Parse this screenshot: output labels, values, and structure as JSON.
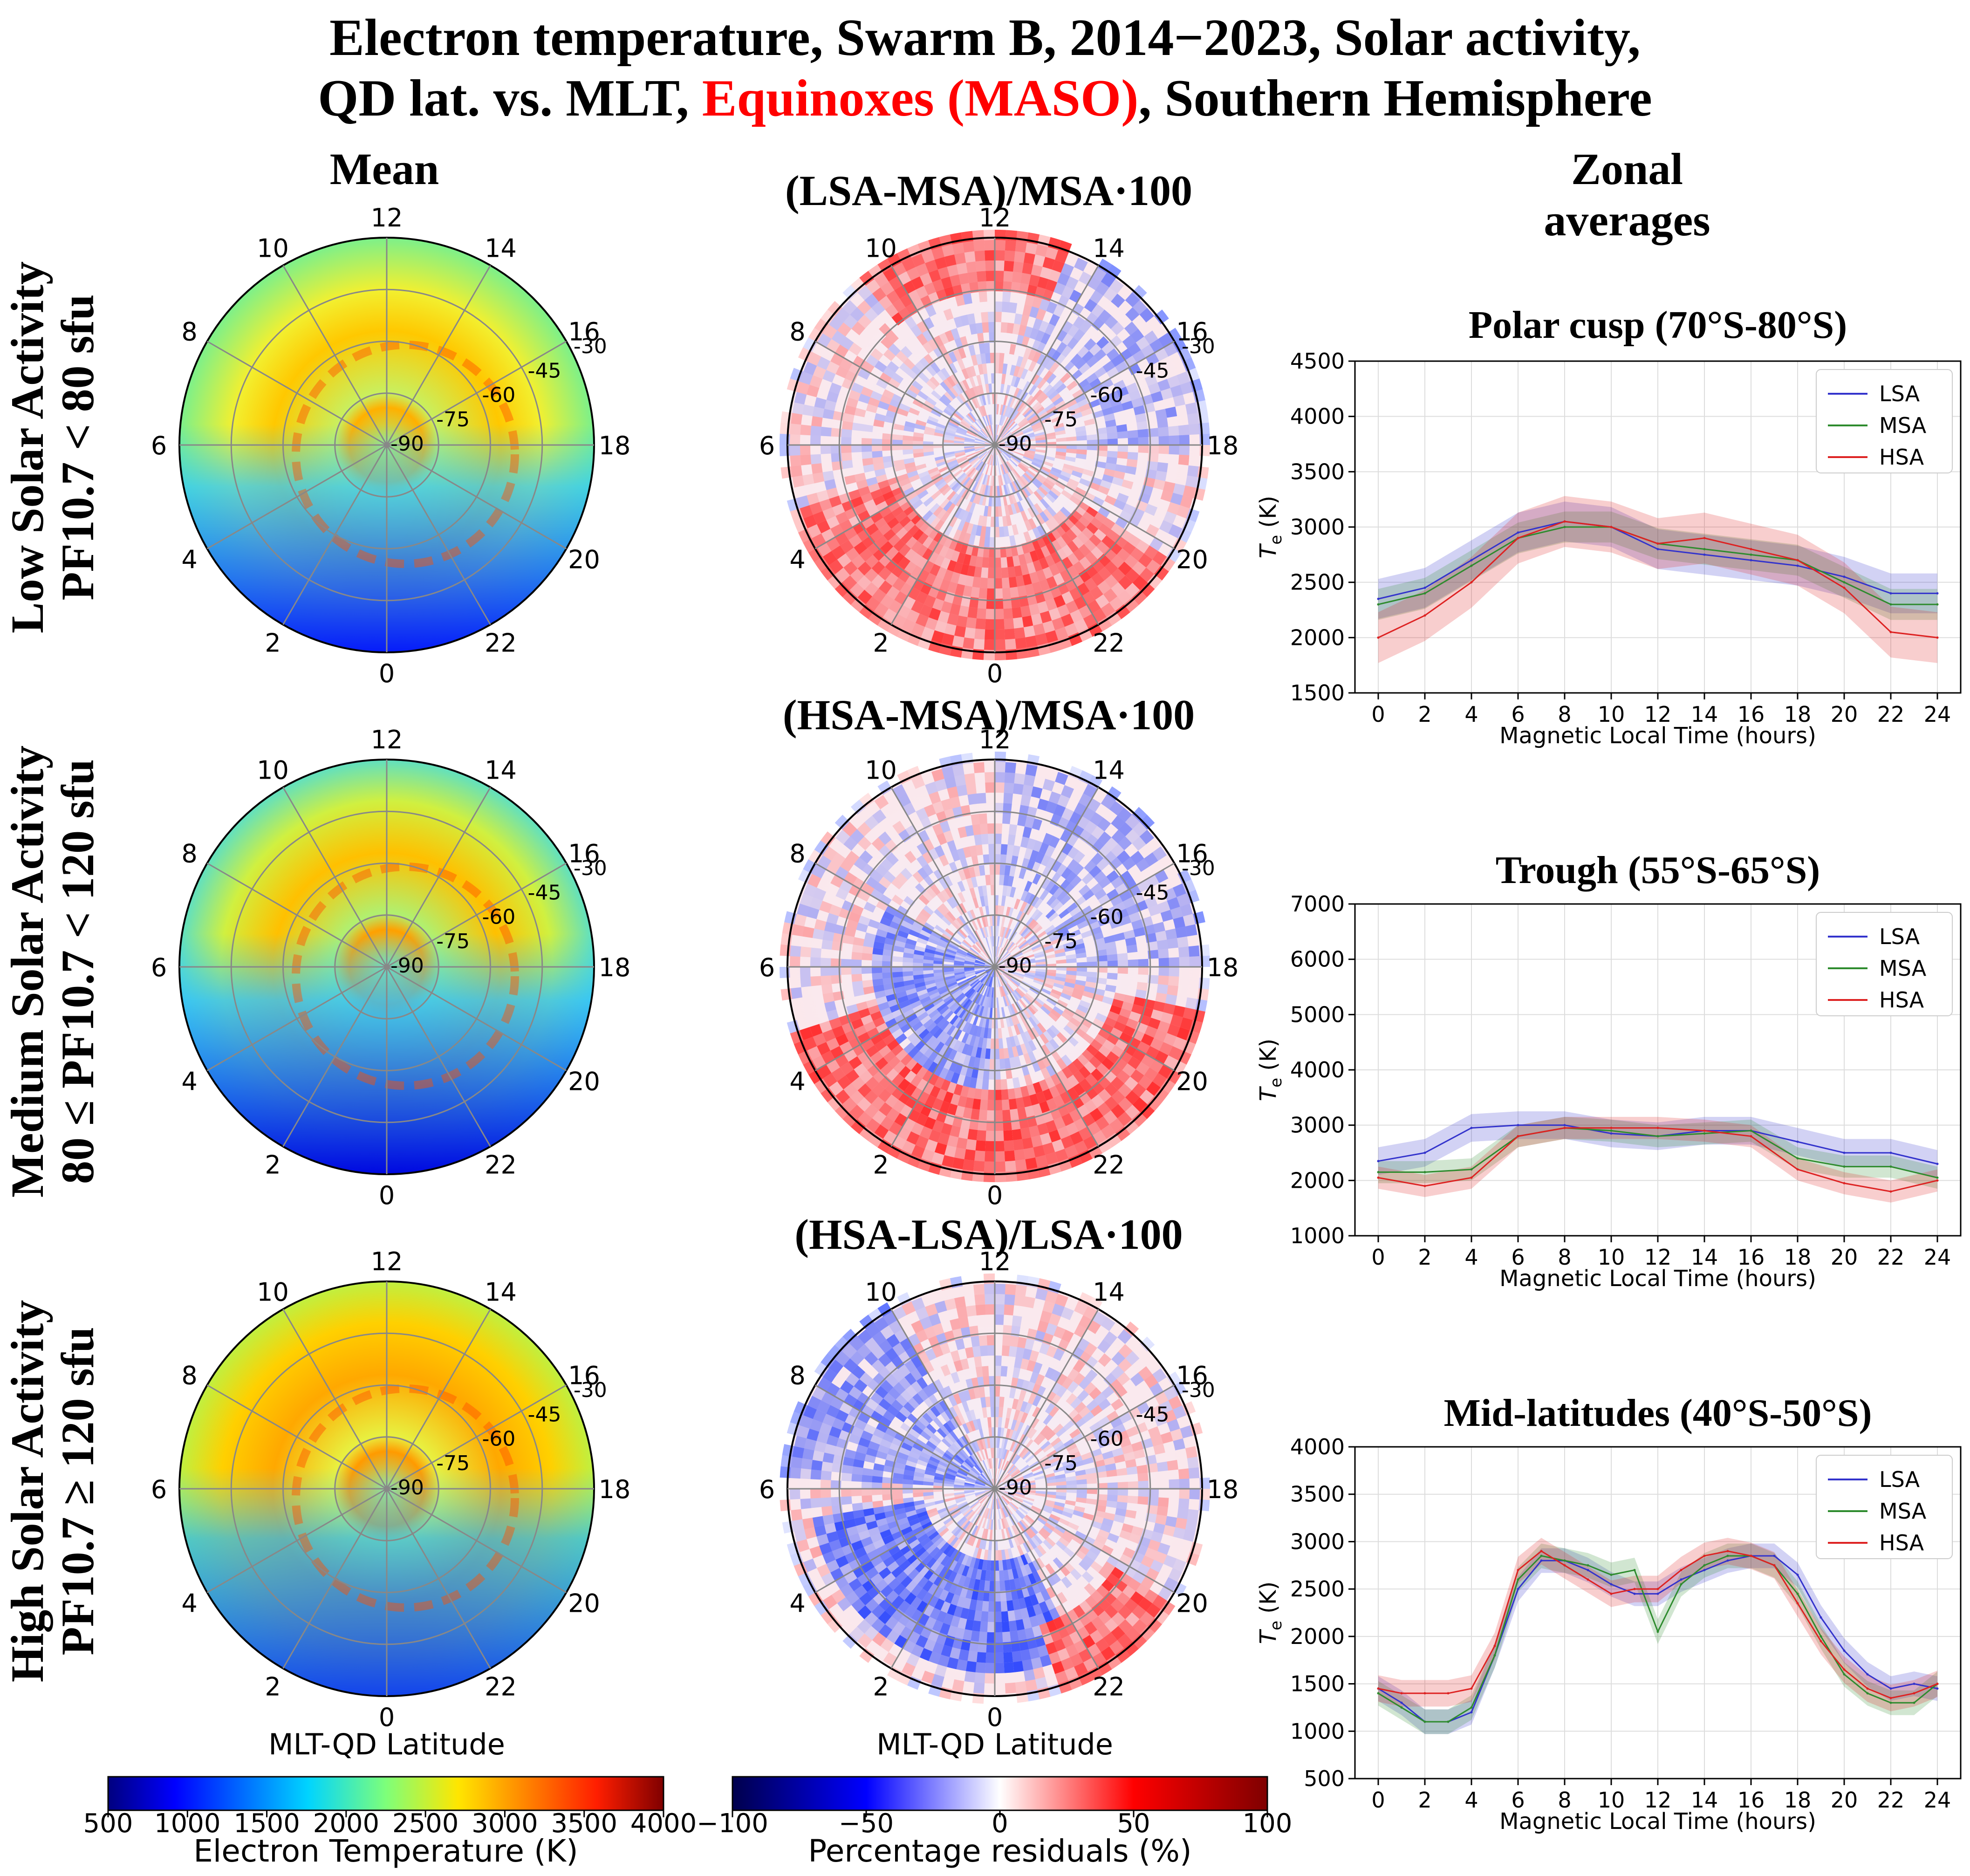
{
  "figure": {
    "title_line1": "Electron temperature, Swarm B, 2014−2023, Solar activity,",
    "title_line2_a": "QD lat. vs. MLT, ",
    "title_line2_b": "Equinoxes (MASO)",
    "title_line2_c": ", Southern Hemisphere",
    "highlight_color": "#ff0000"
  },
  "column_headers": {
    "mean": "Mean",
    "zonal_line1": "Zonal",
    "zonal_line2": "averages"
  },
  "row_labels": [
    {
      "line1": "Low Solar Activity",
      "line2": "PF10.7 < 80 sfu"
    },
    {
      "line1": "Medium Solar Activity",
      "line2": "80 ≤ PF10.7 < 120 sfu"
    },
    {
      "line1": "High Solar Activity",
      "line2": "PF10.7 ≥ 120 sfu"
    }
  ],
  "residual_titles": [
    "(LSA-MSA)/MSA·100",
    "(HSA-MSA)/MSA·100",
    "(HSA-LSA)/LSA·100"
  ],
  "polar": {
    "mlt_labels": [
      "0",
      "2",
      "4",
      "6",
      "8",
      "10",
      "12",
      "14",
      "16",
      "18",
      "20",
      "22"
    ],
    "lat_labels": [
      "-90",
      "-75",
      "-60",
      "-45",
      "-30"
    ],
    "xlabel": "MLT-QD Latitude"
  },
  "colorbars": {
    "temperature": {
      "label": "Electron Temperature (K)",
      "ticks": [
        "500",
        "1000",
        "1500",
        "2000",
        "2500",
        "3000",
        "3500",
        "4000"
      ],
      "range": [
        500,
        4000
      ]
    },
    "residual": {
      "label": "Percentage residuals (%)",
      "ticks": [
        "−100",
        "−50",
        "0",
        "50",
        "100"
      ],
      "range": [
        -100,
        100
      ]
    }
  },
  "colors": {
    "LSA": "#3333cc",
    "MSA": "#2e8b2e",
    "HSA": "#dd2222"
  },
  "chart_data": [
    {
      "type": "line",
      "title": "Polar cusp (70°S-80°S)",
      "xlabel": "Magnetic Local Time (hours)",
      "ylabel": "T",
      "ylabel_sub": "e",
      "ylabel_unit": " (K)",
      "xlim": [
        0,
        24
      ],
      "ylim": [
        1500,
        4500
      ],
      "xticks": [
        0,
        2,
        4,
        6,
        8,
        10,
        12,
        14,
        16,
        18,
        20,
        22,
        24
      ],
      "yticks": [
        1500,
        2000,
        2500,
        3000,
        3500,
        4000,
        4500
      ],
      "legend": [
        "LSA",
        "MSA",
        "HSA"
      ],
      "x": [
        0,
        2,
        4,
        6,
        8,
        10,
        12,
        14,
        16,
        18,
        20,
        22,
        24
      ],
      "series": [
        {
          "name": "LSA",
          "values": [
            2350,
            2450,
            2700,
            2950,
            3050,
            3000,
            2800,
            2750,
            2700,
            2650,
            2550,
            2400,
            2400
          ],
          "band": 180
        },
        {
          "name": "MSA",
          "values": [
            2300,
            2400,
            2650,
            2900,
            3000,
            3000,
            2850,
            2800,
            2750,
            2700,
            2500,
            2300,
            2300
          ],
          "band": 140
        },
        {
          "name": "HSA",
          "values": [
            2000,
            2200,
            2500,
            2900,
            3050,
            3000,
            2850,
            2900,
            2800,
            2700,
            2450,
            2050,
            2000
          ],
          "band": 230
        }
      ]
    },
    {
      "type": "line",
      "title": "Trough (55°S-65°S)",
      "xlabel": "Magnetic Local Time (hours)",
      "ylabel": "T",
      "ylabel_sub": "e",
      "ylabel_unit": " (K)",
      "xlim": [
        0,
        24
      ],
      "ylim": [
        1000,
        7000
      ],
      "xticks": [
        0,
        2,
        4,
        6,
        8,
        10,
        12,
        14,
        16,
        18,
        20,
        22,
        24
      ],
      "yticks": [
        1000,
        2000,
        3000,
        4000,
        5000,
        6000,
        7000
      ],
      "legend": [
        "LSA",
        "MSA",
        "HSA"
      ],
      "x": [
        0,
        2,
        4,
        6,
        8,
        10,
        12,
        14,
        16,
        18,
        20,
        22,
        24
      ],
      "series": [
        {
          "name": "LSA",
          "values": [
            2350,
            2500,
            2950,
            3000,
            3000,
            2850,
            2800,
            2900,
            2900,
            2700,
            2500,
            2500,
            2300
          ],
          "band": 250
        },
        {
          "name": "MSA",
          "values": [
            2150,
            2150,
            2200,
            2800,
            2950,
            2900,
            2800,
            2850,
            2900,
            2400,
            2250,
            2250,
            2050
          ],
          "band": 200
        },
        {
          "name": "HSA",
          "values": [
            2050,
            1900,
            2050,
            2800,
            2950,
            2950,
            2950,
            2900,
            2800,
            2200,
            1950,
            1800,
            2000
          ],
          "band": 200
        }
      ]
    },
    {
      "type": "line",
      "title": "Mid-latitudes (40°S-50°S)",
      "xlabel": "Magnetic Local Time (hours)",
      "ylabel": "T",
      "ylabel_sub": "e",
      "ylabel_unit": " (K)",
      "xlim": [
        0,
        24
      ],
      "ylim": [
        500,
        4000
      ],
      "xticks": [
        0,
        2,
        4,
        6,
        8,
        10,
        12,
        14,
        16,
        18,
        20,
        22,
        24
      ],
      "yticks": [
        500,
        1000,
        1500,
        2000,
        2500,
        3000,
        3500,
        4000
      ],
      "legend": [
        "LSA",
        "MSA",
        "HSA"
      ],
      "x": [
        0,
        1,
        2,
        3,
        4,
        5,
        6,
        7,
        8,
        9,
        10,
        11,
        12,
        13,
        14,
        15,
        16,
        17,
        18,
        19,
        20,
        21,
        22,
        23,
        24
      ],
      "series": [
        {
          "name": "LSA",
          "values": [
            1450,
            1300,
            1100,
            1100,
            1200,
            1800,
            2500,
            2800,
            2800,
            2700,
            2550,
            2450,
            2450,
            2600,
            2700,
            2800,
            2850,
            2850,
            2650,
            2200,
            1850,
            1600,
            1450,
            1500,
            1450
          ],
          "band": 130
        },
        {
          "name": "MSA",
          "values": [
            1400,
            1250,
            1100,
            1100,
            1250,
            1800,
            2600,
            2850,
            2800,
            2750,
            2650,
            2700,
            2050,
            2550,
            2750,
            2850,
            2850,
            2750,
            2450,
            2000,
            1600,
            1400,
            1300,
            1300,
            1500
          ],
          "band": 130
        },
        {
          "name": "HSA",
          "values": [
            1450,
            1400,
            1400,
            1400,
            1450,
            1900,
            2700,
            2900,
            2750,
            2600,
            2450,
            2500,
            2500,
            2700,
            2850,
            2900,
            2850,
            2750,
            2350,
            1950,
            1650,
            1450,
            1350,
            1400,
            1500
          ],
          "band": 140
        }
      ]
    }
  ]
}
